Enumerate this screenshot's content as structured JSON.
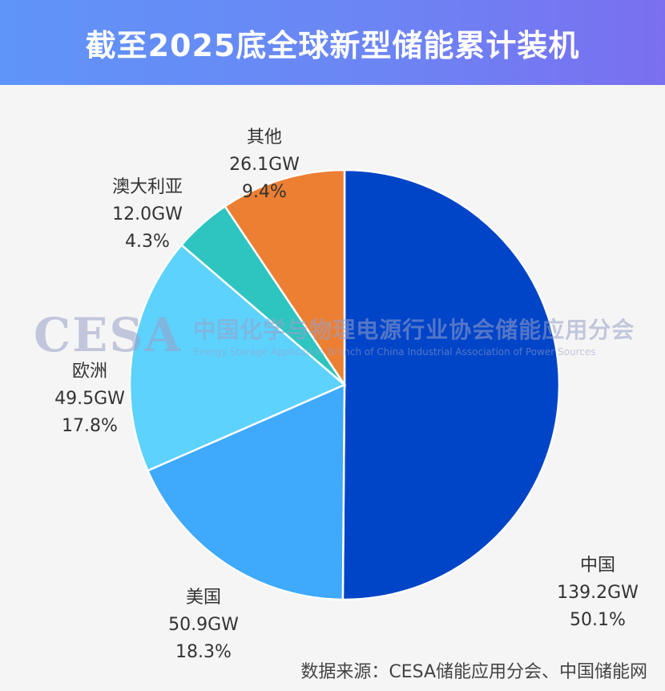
{
  "header": {
    "title": "截至2025底全球新型储能累计装机"
  },
  "chart_data": {
    "type": "pie",
    "title": "截至2025底全球新型储能累计装机",
    "slices": [
      {
        "name": "中国",
        "value": 139.2,
        "value_label": "139.2GW",
        "percent_label": "50.1%",
        "color": "#0044c8"
      },
      {
        "name": "美国",
        "value": 50.9,
        "value_label": "50.9GW",
        "percent_label": "18.3%",
        "color": "#3fa9fb"
      },
      {
        "name": "欧洲",
        "value": 49.5,
        "value_label": "49.5GW",
        "percent_label": "17.8%",
        "color": "#5dd2fd"
      },
      {
        "name": "澳大利亚",
        "value": 12.0,
        "value_label": "12.0GW",
        "percent_label": "4.3%",
        "color": "#2ec5c1"
      },
      {
        "name": "其他",
        "value": 26.1,
        "value_label": "26.1GW",
        "percent_label": "9.4%",
        "color": "#ed7f33"
      }
    ]
  },
  "watermark": {
    "logo": "CESA",
    "name_cn": "中国化学与物理电源行业协会储能应用分会",
    "name_en": "Energy Storage Application Branch of China Industrial Association of Power Sources"
  },
  "footer": {
    "source": "数据来源：CESA储能应用分会、中国储能网"
  }
}
